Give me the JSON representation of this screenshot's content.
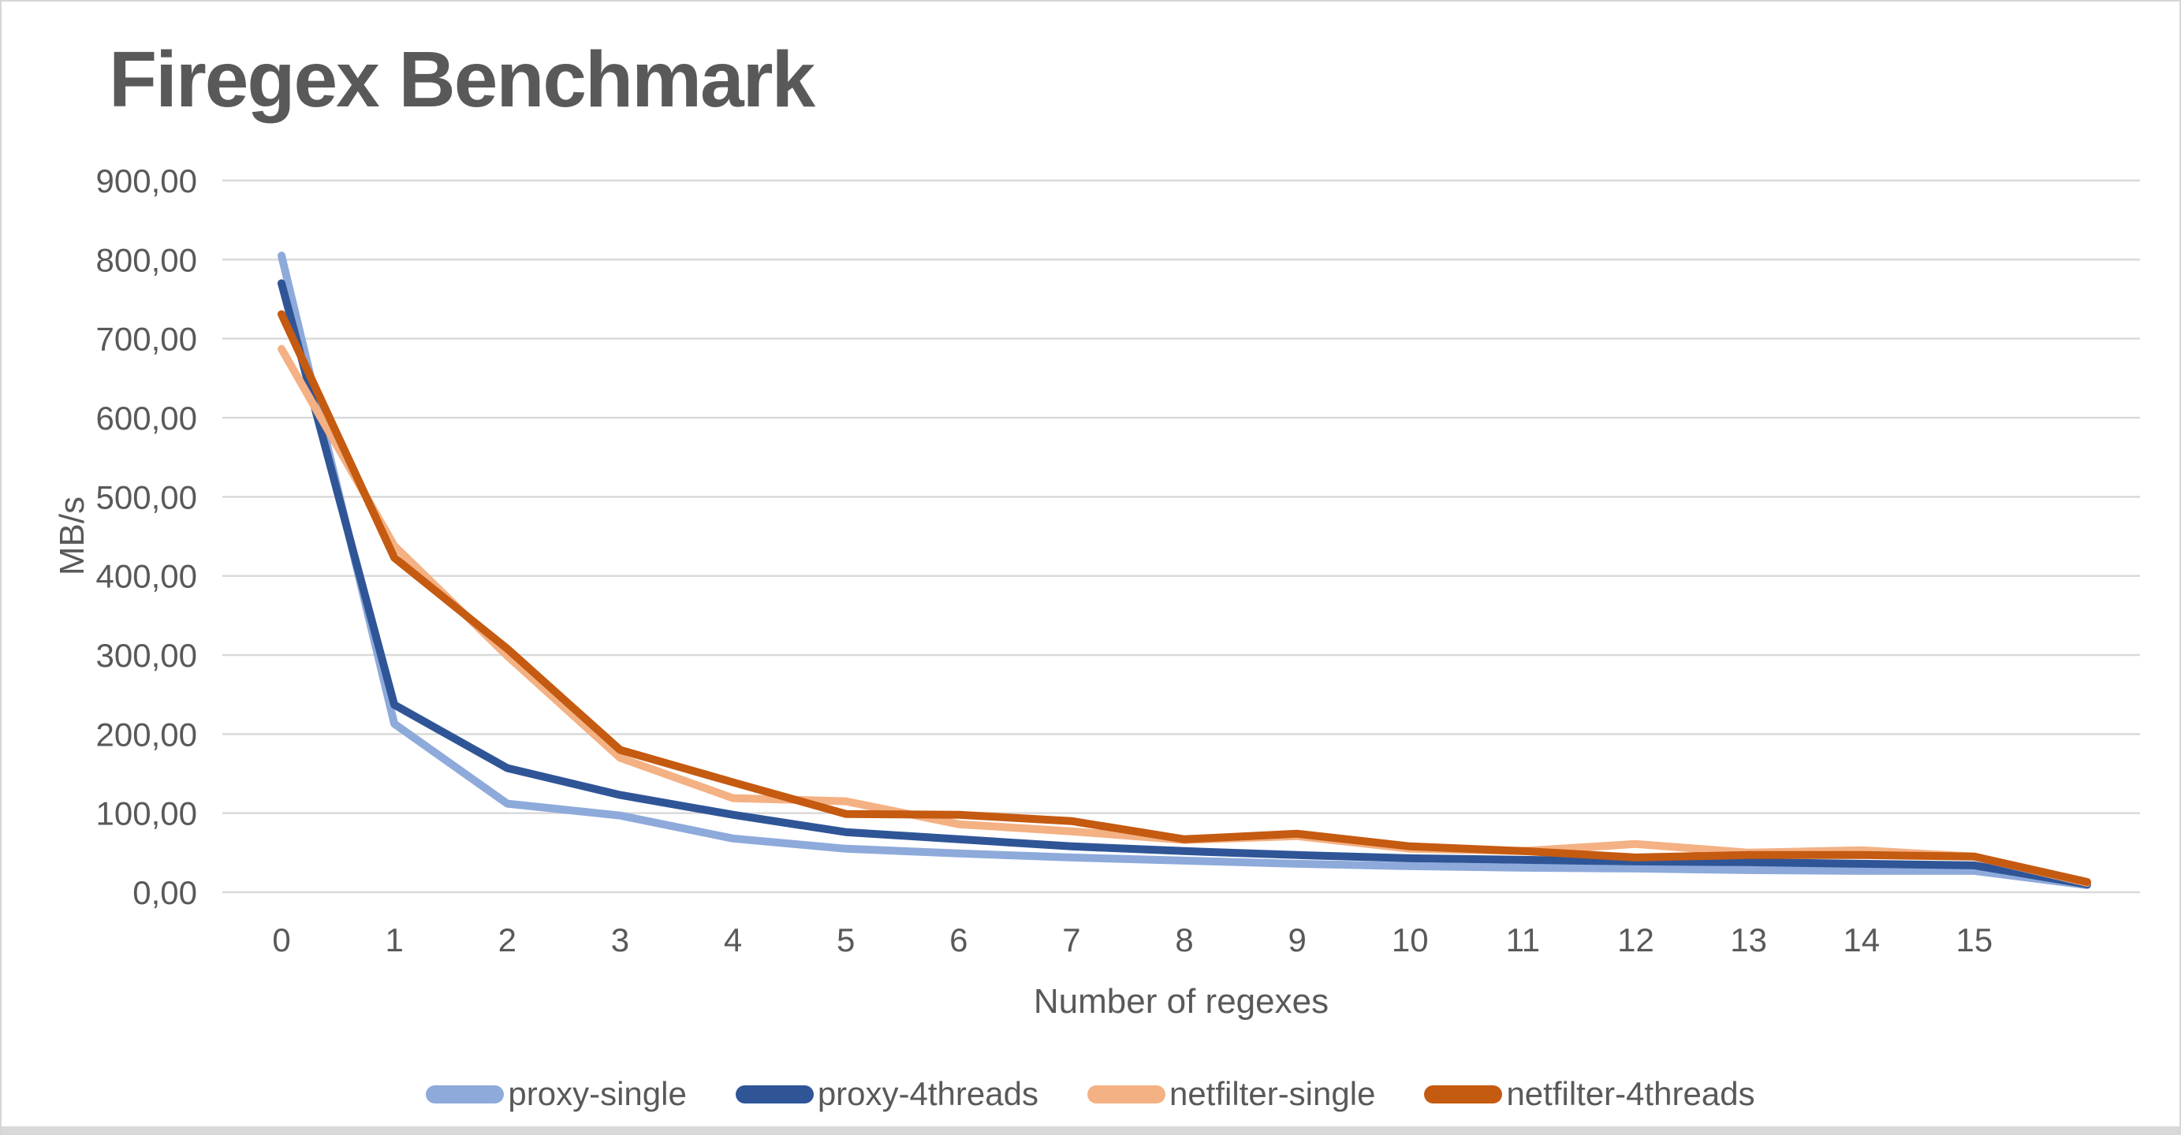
{
  "chart_data": {
    "type": "line",
    "title": "Firegex Benchmark",
    "xlabel": "Number of regexes",
    "ylabel": "MB/s",
    "ylim": [
      0,
      900
    ],
    "grid": "horizontal",
    "legend_position": "bottom",
    "x": [
      0,
      1,
      2,
      3,
      4,
      5,
      6,
      7,
      8,
      9,
      10,
      11,
      12,
      13,
      14,
      15,
      16
    ],
    "x_tick_labels": [
      "0",
      "1",
      "2",
      "3",
      "4",
      "5",
      "6",
      "7",
      "8",
      "9",
      "10",
      "11",
      "12",
      "13",
      "14",
      "15"
    ],
    "y_ticks": [
      {
        "value": 900,
        "label": "900,00"
      },
      {
        "value": 800,
        "label": "800,00"
      },
      {
        "value": 700,
        "label": "700,00"
      },
      {
        "value": 600,
        "label": "600,00"
      },
      {
        "value": 500,
        "label": "500,00"
      },
      {
        "value": 400,
        "label": "400,00"
      },
      {
        "value": 300,
        "label": "300,00"
      },
      {
        "value": 200,
        "label": "200,00"
      },
      {
        "value": 100,
        "label": "100,00"
      },
      {
        "value": 0,
        "label": "0,00"
      }
    ],
    "series": [
      {
        "name": "proxy-single",
        "color": "#8EAADB",
        "values": [
          805,
          213,
          112,
          97,
          68,
          55,
          49,
          44,
          40,
          36,
          33,
          31,
          30,
          28,
          27,
          27,
          9
        ]
      },
      {
        "name": "proxy-4threads",
        "color": "#2F5597",
        "values": [
          770,
          237,
          157,
          123,
          98,
          76,
          67,
          58,
          52,
          47,
          43,
          41,
          39,
          38,
          36,
          34,
          10
        ]
      },
      {
        "name": "netfilter-single",
        "color": "#F4B183",
        "values": [
          687,
          438,
          299,
          170,
          119,
          115,
          86,
          77,
          66,
          71,
          55,
          52,
          61,
          50,
          53,
          45,
          12
        ]
      },
      {
        "name": "netfilter-4threads",
        "color": "#C55A11",
        "values": [
          731,
          423,
          308,
          180,
          139,
          99,
          98,
          90,
          67,
          74,
          58,
          52,
          44,
          47,
          47,
          45,
          13
        ]
      }
    ]
  },
  "style": {
    "text_color": "#595959",
    "gridline_color": "#d9d9d9",
    "frame_color": "#d6d6d6",
    "line_width": 10
  }
}
